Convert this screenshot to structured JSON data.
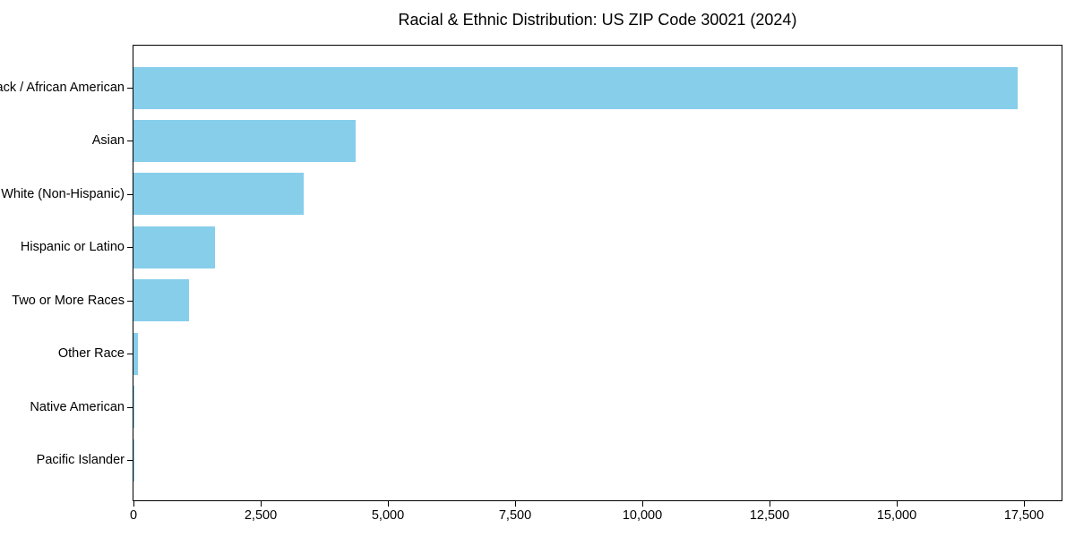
{
  "chart_data": {
    "type": "bar",
    "orientation": "horizontal",
    "title": "Racial & Ethnic Distribution: US ZIP Code 30021 (2024)",
    "categories": [
      "Black / African American",
      "Asian",
      "White (Non-Hispanic)",
      "Hispanic or Latino",
      "Two or More Races",
      "Other Race",
      "Native American",
      "Pacific Islander"
    ],
    "values": [
      17370,
      4370,
      3340,
      1600,
      1090,
      90,
      20,
      4
    ],
    "xlabel": "",
    "ylabel": "",
    "xlim": [
      0,
      18240
    ],
    "xticks": [
      0,
      2500,
      5000,
      7500,
      10000,
      12500,
      15000,
      17500
    ],
    "xtick_labels": [
      "0",
      "2,500",
      "5,000",
      "7,500",
      "10,000",
      "12,500",
      "15,000",
      "17,500"
    ],
    "bar_color": "#87ceeb",
    "axis_color": "#000000",
    "grid": false,
    "legend": null
  }
}
